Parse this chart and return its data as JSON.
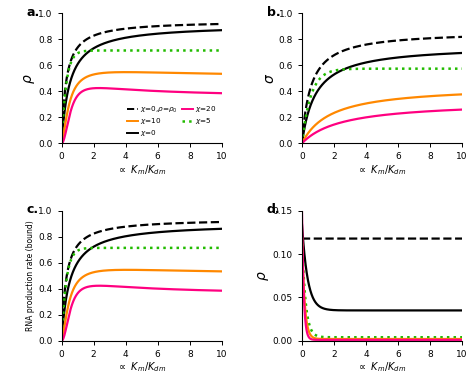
{
  "x_ticks": [
    0,
    2,
    4,
    6,
    8,
    10
  ],
  "colors": [
    "#000000",
    "#000000",
    "#22bb00",
    "#ff8800",
    "#ff0080"
  ],
  "linestyles": [
    "--",
    "-",
    ":",
    "-",
    "-"
  ],
  "linewidths": [
    1.6,
    1.6,
    1.8,
    1.6,
    1.6
  ],
  "panel_labels": [
    "a.",
    "b.",
    "c.",
    "d."
  ],
  "ylim_abc": [
    0,
    1
  ],
  "ylim_d": [
    0,
    0.15
  ],
  "yticks_d": [
    0.0,
    0.05,
    0.1,
    0.15
  ],
  "legend_texts": [
    "χ=0,ρ=ρ₀",
    "χ=0",
    "χ=5",
    "χ=10",
    "χ=20"
  ],
  "figsize": [
    4.74,
    3.85
  ],
  "dpi": 100
}
